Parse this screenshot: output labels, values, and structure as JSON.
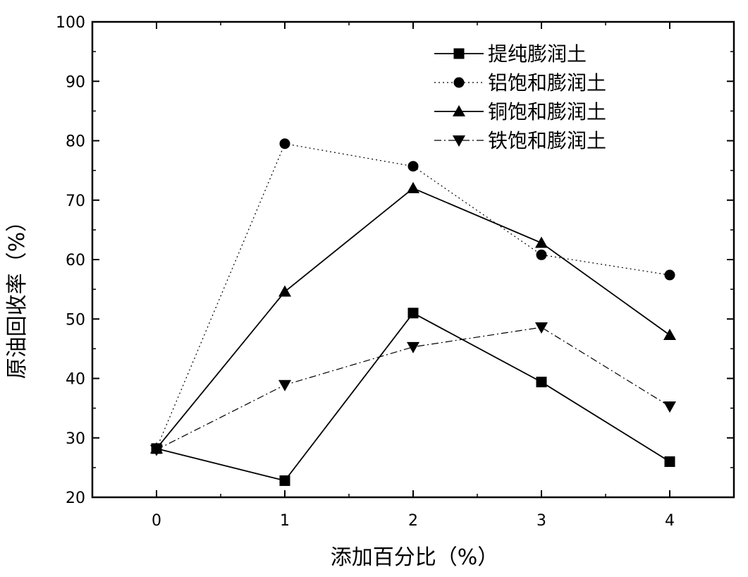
{
  "chart_data": {
    "type": "line",
    "xlabel": "添加百分比（%）",
    "ylabel": "原油回收率（%）",
    "xlim": [
      -0.5,
      4.5
    ],
    "ylim": [
      20,
      100
    ],
    "xticks": [
      0,
      1,
      2,
      3,
      4
    ],
    "yticks": [
      20,
      30,
      40,
      50,
      60,
      70,
      80,
      90,
      100
    ],
    "grid": false,
    "legend_position": "top-right",
    "x": [
      0,
      1,
      2,
      3,
      4
    ],
    "series": [
      {
        "name": "提纯膨润土",
        "marker": "square",
        "line": "solid",
        "values": [
          28.2,
          22.8,
          51.0,
          39.4,
          26.0
        ]
      },
      {
        "name": "铝饱和膨润土",
        "marker": "circle",
        "line": "dotted",
        "values": [
          28.2,
          79.5,
          75.7,
          60.8,
          57.4
        ]
      },
      {
        "name": "铜饱和膨润土",
        "marker": "triangle-up",
        "line": "solid",
        "values": [
          28.2,
          54.6,
          72.0,
          62.8,
          47.3
        ]
      },
      {
        "name": "铁饱和膨润土",
        "marker": "triangle-down",
        "line": "dashdot",
        "values": [
          28.0,
          38.9,
          45.3,
          48.6,
          35.3
        ]
      }
    ]
  }
}
